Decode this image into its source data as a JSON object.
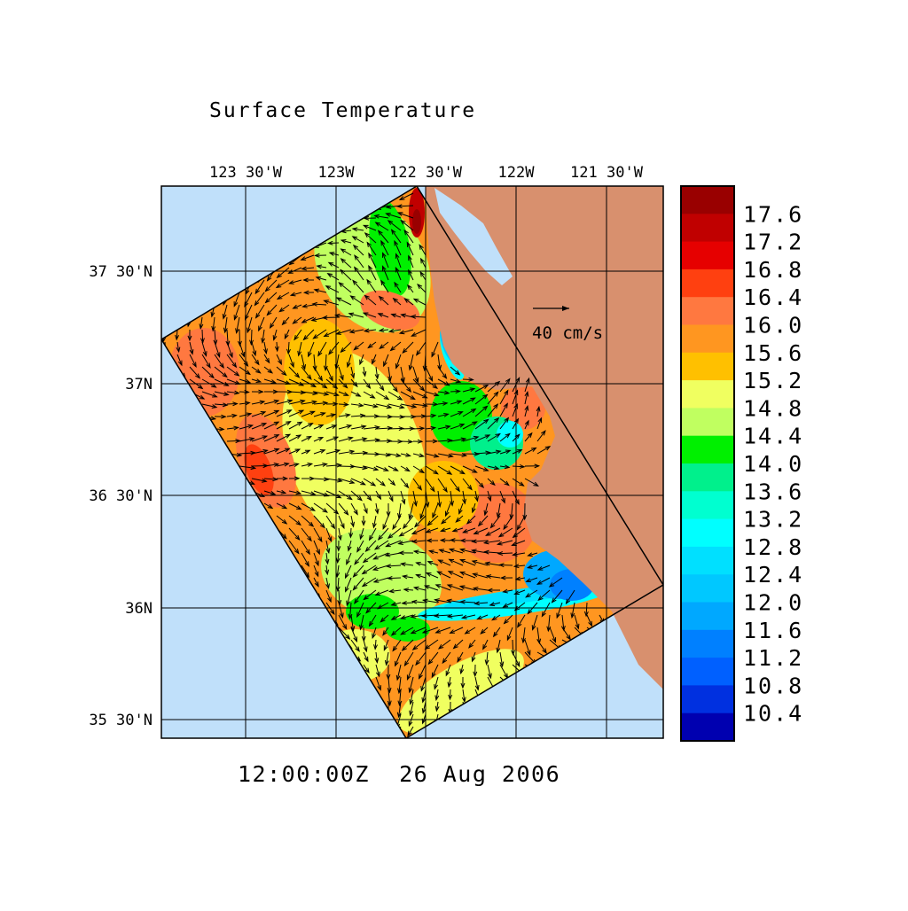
{
  "chart_data": {
    "type": "heatmap",
    "title": "Surface Temperature",
    "time_label": "12:00:00Z  26 Aug 2006",
    "x_ticks": [
      "123 30'W",
      "123W",
      "122 30'W",
      "122W",
      "121 30'W"
    ],
    "y_ticks": [
      "37 30'N",
      "37N",
      "36 30'N",
      "36N",
      "35 30'N"
    ],
    "grid": true,
    "vector_legend": "40 cm/s",
    "colorbar": {
      "placement": "right",
      "labels": [
        "17.6",
        "17.2",
        "16.8",
        "16.4",
        "16.0",
        "15.6",
        "15.2",
        "14.8",
        "14.4",
        "14.0",
        "13.6",
        "13.2",
        "12.8",
        "12.4",
        "12.0",
        "11.6",
        "11.2",
        "10.8",
        "10.4"
      ],
      "colors_top_to_bottom": [
        "#990000",
        "#c00000",
        "#e60000",
        "#ff4010",
        "#ff7840",
        "#ff9620",
        "#ffc000",
        "#f0ff60",
        "#c0ff60",
        "#00f000",
        "#00f08c",
        "#00ffd0",
        "#00ffff",
        "#00e0ff",
        "#00c8ff",
        "#00a8ff",
        "#0080ff",
        "#0060ff",
        "#0030e0",
        "#0000b0"
      ]
    },
    "colors": {
      "ocean": "#c0e0fa",
      "land": "#d8906e"
    }
  }
}
